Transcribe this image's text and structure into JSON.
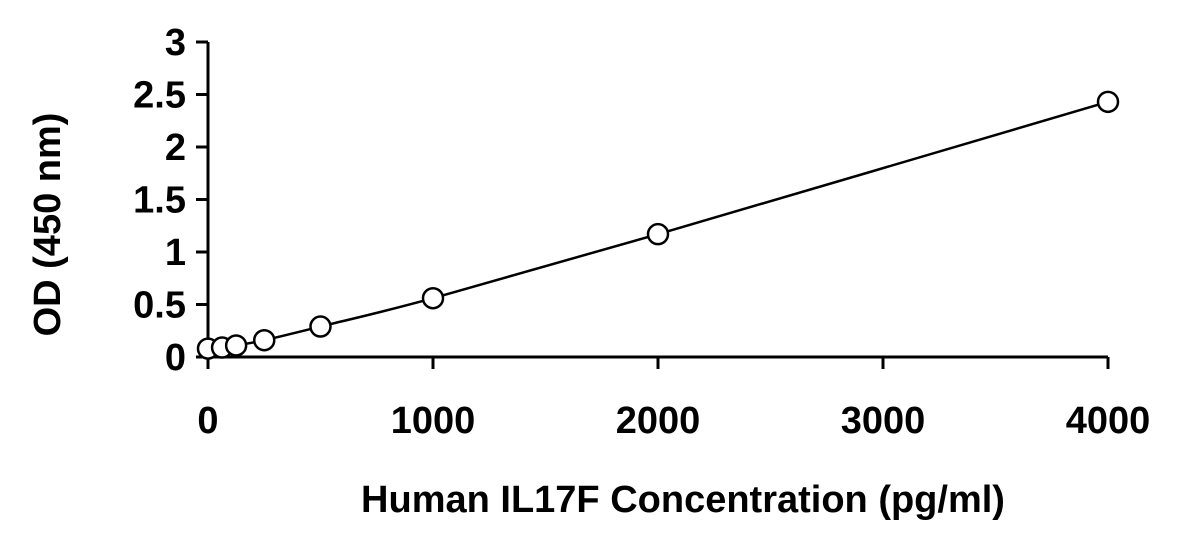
{
  "chart_data": {
    "type": "scatter",
    "xlabel": "Human IL17F Concentration (pg/ml)",
    "ylabel": "OD (450 nm)",
    "xlim": [
      0,
      4000
    ],
    "ylim": [
      0,
      3
    ],
    "xticks": [
      0,
      1000,
      2000,
      3000,
      4000
    ],
    "yticks": [
      0,
      0.5,
      1,
      1.5,
      2,
      2.5,
      3
    ],
    "xtick_labels": [
      "0",
      "1000",
      "2000",
      "3000",
      "4000"
    ],
    "ytick_labels": [
      "0",
      "0.5",
      "1",
      "1.5",
      "2",
      "2.5",
      "3"
    ],
    "grid": false,
    "series": [
      {
        "x": [
          0,
          62.5,
          125,
          250,
          500,
          1000,
          2000,
          4000
        ],
        "y": [
          0.08,
          0.09,
          0.11,
          0.16,
          0.29,
          0.56,
          1.17,
          2.43
        ],
        "marker": "open-circle",
        "fit_line": true,
        "color": "#000000"
      }
    ]
  }
}
